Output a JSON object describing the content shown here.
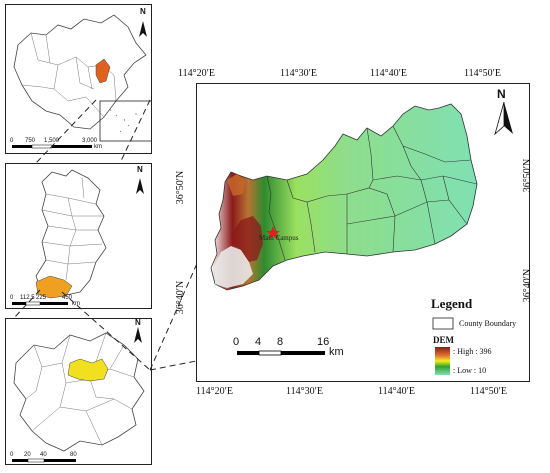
{
  "main_map": {
    "lon_ticks": [
      "114°20′E",
      "114°30′E",
      "114°40′E",
      "114°50′E"
    ],
    "lat_ticks": [
      "36°50′N",
      "36°40′N"
    ],
    "north_label": "N",
    "campus_label": "Main Campus",
    "scale": {
      "labels": [
        "0",
        "4",
        "8",
        "16"
      ],
      "unit": "km"
    },
    "legend": {
      "title": "Legend",
      "county_boundary": "County Boundary",
      "dem_title": "DEM",
      "high_label": ": High : 396",
      "low_label": ": Low : 10"
    },
    "colors": {
      "low": "#7fe0b3",
      "mid": "#3fb33f",
      "high": "#8b1a1a",
      "peak": "#ffffff",
      "star": "#e02020"
    }
  },
  "inset_china": {
    "north_label": "N",
    "scale_labels": [
      "0",
      "750",
      "1,500",
      "3,000"
    ],
    "scale_unit": "km",
    "highlight_color": "#e0601f"
  },
  "inset_province": {
    "north_label": "N",
    "scale_labels": [
      "0",
      "112.5",
      "225",
      "450"
    ],
    "scale_unit": "km",
    "highlight_color": "#f0a020"
  },
  "inset_city": {
    "north_label": "N",
    "scale_labels": [
      "0",
      "20",
      "40",
      "80"
    ],
    "scale_unit": "km",
    "highlight_color": "#f0e020"
  }
}
